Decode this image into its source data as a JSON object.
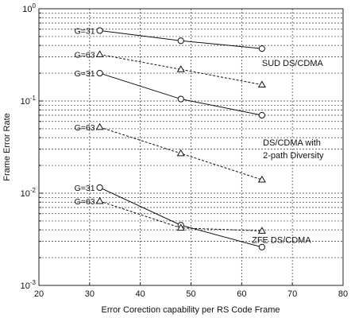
{
  "chart_data": {
    "type": "line",
    "xlabel": "Error Corection capability per RS Code Frame",
    "ylabel": "Frame Error Rate",
    "xlim": [
      20,
      80
    ],
    "ylim": [
      0.001,
      1
    ],
    "yscale": "log",
    "grid": true,
    "x_ticks": [
      "20",
      "30",
      "40",
      "50",
      "60",
      "70",
      "80"
    ],
    "y_ticks": [
      {
        "value": 1,
        "base": "10",
        "exp": "0"
      },
      {
        "value": 0.1,
        "base": "10",
        "exp": "-1"
      },
      {
        "value": 0.01,
        "base": "10",
        "exp": "-2"
      },
      {
        "value": 0.001,
        "base": "10",
        "exp": "-3"
      }
    ],
    "series": [
      {
        "group": "SUD DS/CDMA",
        "g_label": "G=31",
        "marker": "circle",
        "dash": "solid",
        "x": [
          32,
          48,
          64
        ],
        "y": [
          0.58,
          0.45,
          0.37
        ]
      },
      {
        "group": "SUD DS/CDMA",
        "g_label": "G=63",
        "marker": "triangle",
        "dash": "dashed",
        "x": [
          32,
          48,
          64
        ],
        "y": [
          0.32,
          0.22,
          0.15
        ]
      },
      {
        "group": "DS/CDMA with 2-path Diversity",
        "g_label": "G=31",
        "marker": "circle",
        "dash": "solid",
        "x": [
          32,
          48,
          64
        ],
        "y": [
          0.2,
          0.105,
          0.07
        ]
      },
      {
        "group": "DS/CDMA with 2-path Diversity",
        "g_label": "G=63",
        "marker": "triangle",
        "dash": "dashed",
        "x": [
          32,
          48,
          64
        ],
        "y": [
          0.052,
          0.027,
          0.014
        ]
      },
      {
        "group": "ZFE DS/CDMA",
        "g_label": "G=31",
        "marker": "circle",
        "dash": "solid",
        "x": [
          32,
          48,
          64
        ],
        "y": [
          0.0115,
          0.0045,
          0.0026
        ]
      },
      {
        "group": "ZFE DS/CDMA",
        "g_label": "G=63",
        "marker": "triangle",
        "dash": "dashed",
        "x": [
          32,
          48,
          64
        ],
        "y": [
          0.0082,
          0.0042,
          0.0039
        ]
      }
    ],
    "annotations": [
      {
        "text": "SUD DS/CDMA",
        "x": 64,
        "y": 0.24
      },
      {
        "text": "DS/CDMA with",
        "x": 64.2,
        "y": 0.033
      },
      {
        "text": "2-path Diversity",
        "x": 64.2,
        "y": 0.024
      },
      {
        "text": "ZFE DS/CDMA",
        "x": 62,
        "y": 0.0029
      }
    ]
  }
}
